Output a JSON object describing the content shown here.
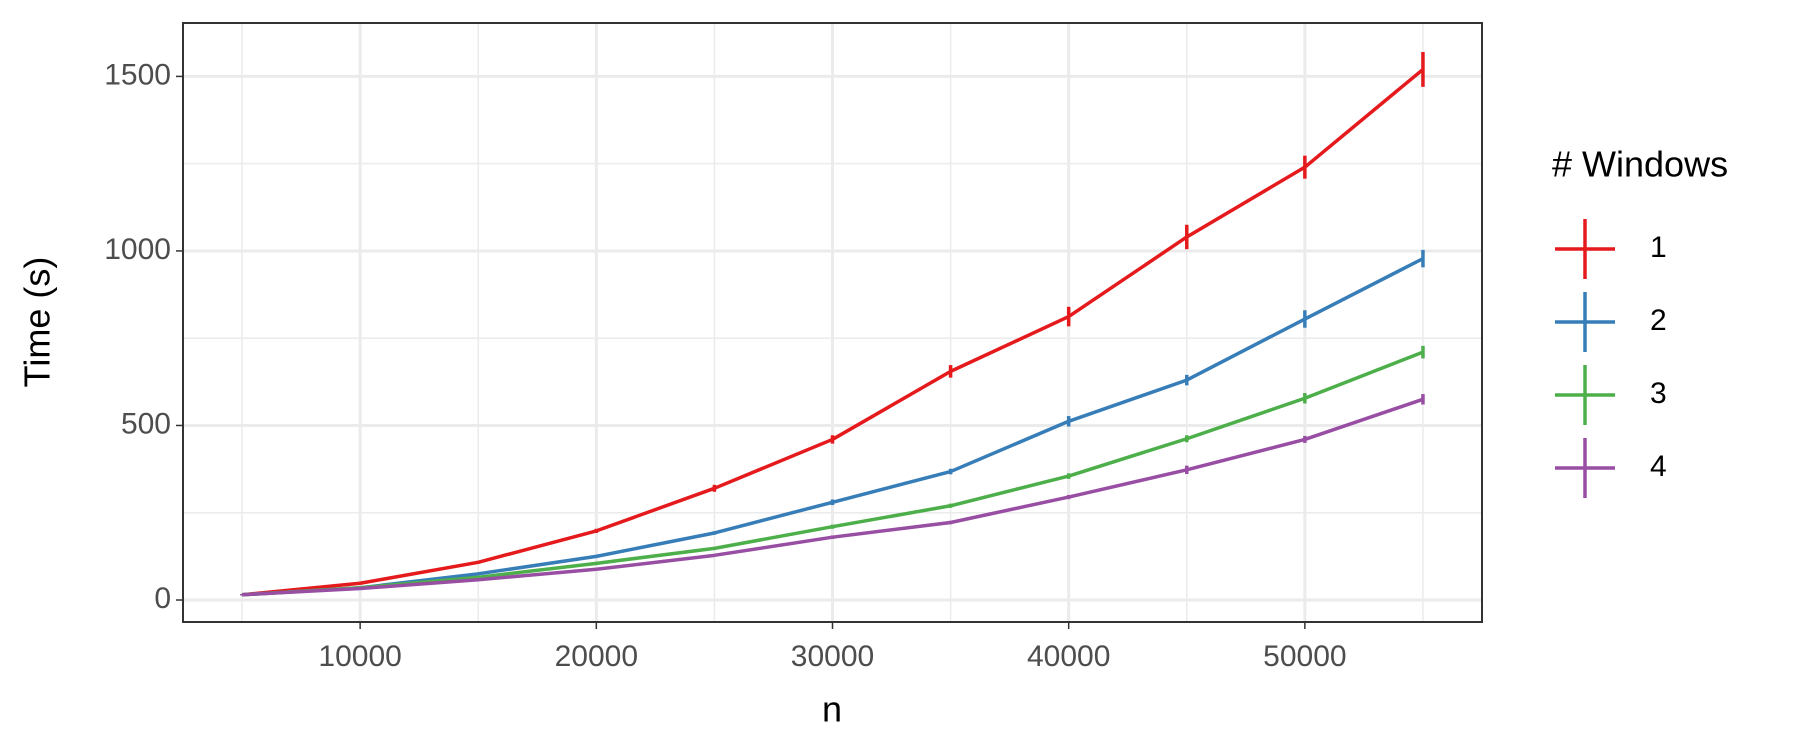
{
  "chart_data": {
    "type": "line",
    "x_label": "n",
    "y_label": "Time (s)",
    "legend_title": "# Windows",
    "legend_position": "right",
    "grid": true,
    "x": [
      5000,
      10000,
      15000,
      20000,
      25000,
      30000,
      35000,
      40000,
      45000,
      50000,
      55000
    ],
    "xlim": [
      2500,
      57500
    ],
    "xticks": [
      10000,
      20000,
      30000,
      40000,
      50000
    ],
    "ylim": [
      -63,
      1653
    ],
    "yticks": [
      0,
      500,
      1000,
      1500
    ],
    "series": [
      {
        "name": "1",
        "color": "#e41a1c",
        "values": [
          15,
          48,
          108,
          198,
          320,
          460,
          655,
          812,
          1040,
          1240,
          1520
        ],
        "errors": [
          2,
          3,
          4,
          6,
          10,
          12,
          18,
          28,
          35,
          33,
          50
        ]
      },
      {
        "name": "2",
        "color": "#377eb8",
        "values": [
          15,
          35,
          75,
          125,
          192,
          280,
          368,
          512,
          630,
          805,
          978
        ],
        "errors": [
          2,
          3,
          3,
          4,
          5,
          8,
          8,
          15,
          15,
          25,
          25
        ]
      },
      {
        "name": "3",
        "color": "#4daf4a",
        "values": [
          15,
          35,
          65,
          105,
          148,
          210,
          270,
          355,
          462,
          578,
          710
        ],
        "errors": [
          2,
          2,
          3,
          3,
          4,
          6,
          6,
          8,
          10,
          15,
          18
        ]
      },
      {
        "name": "4",
        "color": "#984ea3",
        "values": [
          15,
          33,
          58,
          88,
          128,
          180,
          222,
          295,
          373,
          460,
          575
        ],
        "errors": [
          2,
          2,
          2,
          3,
          3,
          5,
          5,
          6,
          12,
          10,
          15
        ]
      }
    ]
  }
}
